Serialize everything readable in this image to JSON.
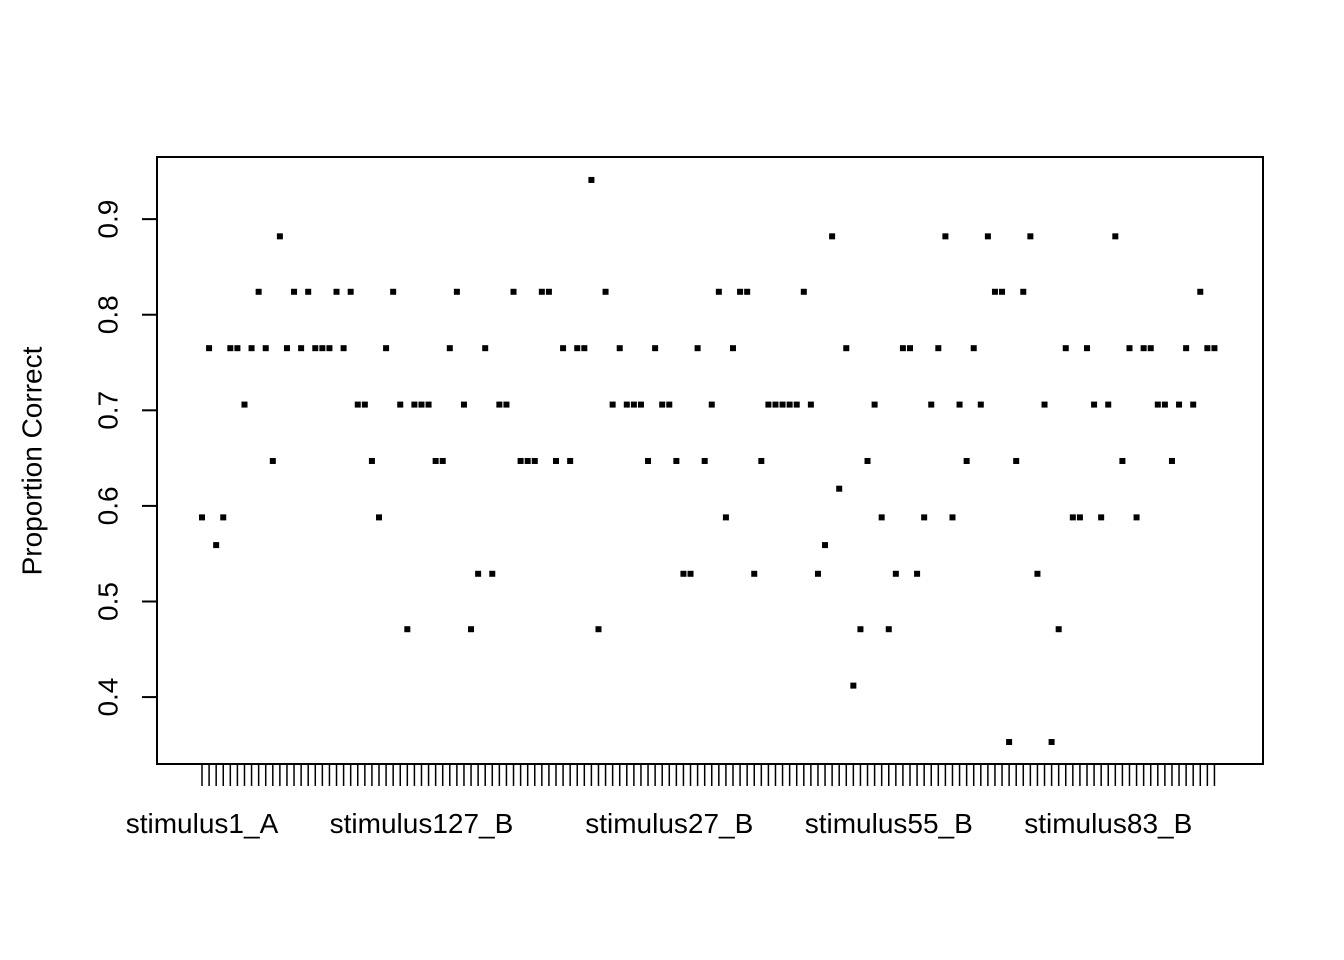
{
  "chart_data": {
    "type": "scatter",
    "xlabel": "",
    "ylabel": "Proportion Correct",
    "ylim": [
      0.33,
      0.965
    ],
    "y_ticks": [
      "0.4",
      "0.5",
      "0.6",
      "0.7",
      "0.8",
      "0.9"
    ],
    "x_tick_labels": [
      "stimulus1_A",
      "stimulus127_B",
      "stimulus27_B",
      "stimulus55_B",
      "stimulus83_B"
    ],
    "x_tick_label_indices": [
      1,
      32,
      67,
      98,
      129
    ],
    "grid": false,
    "legend": "none",
    "point_color": "#000000",
    "values": [
      0.588,
      0.765,
      0.559,
      0.588,
      0.765,
      0.765,
      0.706,
      0.765,
      0.824,
      0.765,
      0.647,
      0.882,
      0.765,
      0.824,
      0.765,
      0.824,
      0.765,
      0.765,
      0.765,
      0.824,
      0.765,
      0.824,
      0.706,
      0.706,
      0.647,
      0.588,
      0.765,
      0.824,
      0.706,
      0.471,
      0.706,
      0.706,
      0.706,
      0.647,
      0.647,
      0.765,
      0.824,
      0.706,
      0.471,
      0.529,
      0.765,
      0.529,
      0.706,
      0.706,
      0.824,
      0.647,
      0.647,
      0.647,
      0.824,
      0.824,
      0.647,
      0.765,
      0.647,
      0.765,
      0.765,
      0.941,
      0.471,
      0.824,
      0.706,
      0.765,
      0.706,
      0.706,
      0.706,
      0.647,
      0.765,
      0.706,
      0.706,
      0.647,
      0.529,
      0.529,
      0.765,
      0.647,
      0.706,
      0.824,
      0.588,
      0.765,
      0.824,
      0.824,
      0.529,
      0.647,
      0.706,
      0.706,
      0.706,
      0.706,
      0.706,
      0.824,
      0.706,
      0.529,
      0.559,
      0.882,
      0.618,
      0.765,
      0.412,
      0.471,
      0.647,
      0.706,
      0.588,
      0.471,
      0.529,
      0.765,
      0.765,
      0.529,
      0.588,
      0.706,
      0.765,
      0.882,
      0.588,
      0.706,
      0.647,
      0.765,
      0.706,
      0.882,
      0.824,
      0.824,
      0.353,
      0.647,
      0.824,
      0.882,
      0.529,
      0.706,
      0.353,
      0.471,
      0.765,
      0.588,
      0.588,
      0.765,
      0.706,
      0.588,
      0.706,
      0.882,
      0.647,
      0.765,
      0.588,
      0.765,
      0.765,
      0.706,
      0.706,
      0.647,
      0.706,
      0.765,
      0.706,
      0.824,
      0.765,
      0.765
    ]
  }
}
